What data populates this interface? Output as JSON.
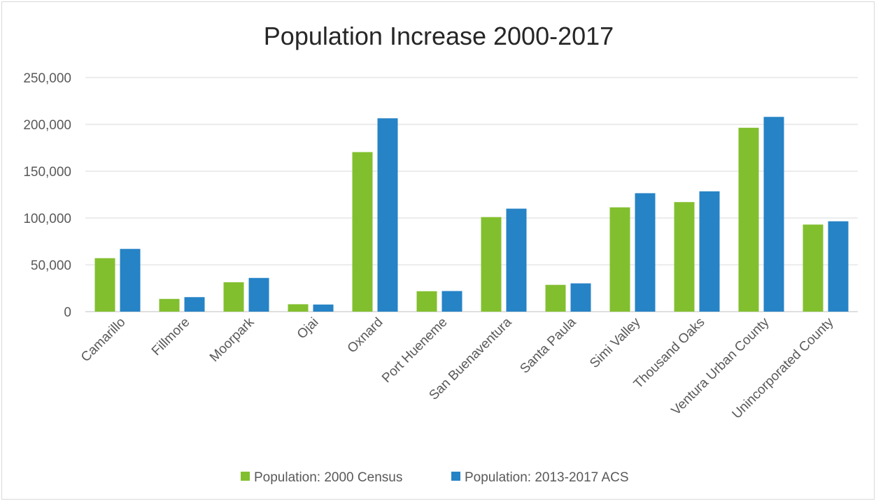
{
  "chart_data": {
    "type": "bar",
    "title": "Population Increase 2000-2017",
    "xlabel": "",
    "ylabel": "",
    "ylim": [
      0,
      250000
    ],
    "yticks": [
      0,
      50000,
      100000,
      150000,
      200000,
      250000
    ],
    "ytick_labels": [
      "0",
      "50,000",
      "100,000",
      "150,000",
      "200,000",
      "250,000"
    ],
    "grid": true,
    "legend_position": "bottom",
    "categories": [
      "Camarillo",
      "Fillmore",
      "Moorpark",
      "Ojai",
      "Oxnard",
      "Port Hueneme",
      "San Buenaventura",
      "Santa Paula",
      "Simi Valley",
      "Thousand Oaks",
      "Ventura Urban County",
      "Unincorporated County"
    ],
    "series": [
      {
        "name": "Population: 2000 Census",
        "color": "#82bf2f",
        "values": [
          57100,
          13600,
          31400,
          7900,
          170400,
          21800,
          101000,
          28600,
          111400,
          117000,
          196400,
          93000
        ]
      },
      {
        "name": "Population: 2013-2017 ACS",
        "color": "#2683c6",
        "values": [
          67000,
          15500,
          36000,
          7600,
          206500,
          22000,
          110000,
          30200,
          126500,
          128500,
          208000,
          96500
        ]
      }
    ]
  }
}
